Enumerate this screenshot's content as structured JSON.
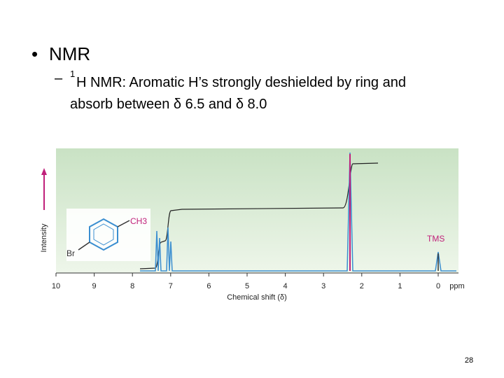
{
  "slide": {
    "bullet": "NMR",
    "sub_bullet": {
      "superscript": "1",
      "lines": [
        "H NMR: Aromatic H’s strongly deshielded by ring and",
        "absorb between δ 6.5 and δ 8.0"
      ]
    },
    "figure": {
      "x_ticks": [
        "10",
        "9",
        "8",
        "7",
        "6",
        "5",
        "4",
        "3",
        "2",
        "1",
        "0"
      ],
      "x_unit": "ppm",
      "x_label": "Chemical shift (δ)",
      "y_label": "Intensity",
      "peak_label": "TMS",
      "molecule_labels": [
        "CH3",
        "Br"
      ]
    },
    "page_number": "28"
  }
}
